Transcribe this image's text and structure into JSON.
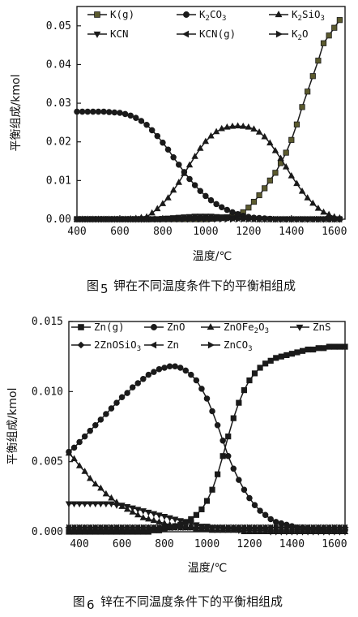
{
  "colors": {
    "ink": "#1a1a1a",
    "k_g_fill": "#5b5a2e",
    "bg": "#ffffff"
  },
  "chart_data": [
    {
      "type": "line",
      "title": "",
      "caption_prefix": "图",
      "caption_number": "5",
      "caption_text": "钾在不同温度条件下的平衡相组成",
      "xlabel": "温度/℃",
      "ylabel": "平衡组成/kmol",
      "xlim": [
        400,
        1650
      ],
      "ylim": [
        0,
        0.055
      ],
      "xticks": [
        "400",
        "600",
        "800",
        "1000",
        "1200",
        "1400",
        "1600"
      ],
      "yticks": [
        "0.00",
        "0.01",
        "0.02",
        "0.03",
        "0.04",
        "0.05"
      ],
      "grid": false,
      "legend": "top",
      "x": [
        400,
        425,
        450,
        475,
        500,
        525,
        550,
        575,
        600,
        625,
        650,
        675,
        700,
        725,
        750,
        775,
        800,
        825,
        850,
        875,
        900,
        925,
        950,
        975,
        1000,
        1025,
        1050,
        1075,
        1100,
        1125,
        1150,
        1175,
        1200,
        1225,
        1250,
        1275,
        1300,
        1325,
        1350,
        1375,
        1400,
        1425,
        1450,
        1475,
        1500,
        1525,
        1550,
        1575,
        1600,
        1625
      ],
      "series": [
        {
          "name": "K(g)",
          "sub": "",
          "marker": "square",
          "values": [
            0,
            0,
            0,
            0,
            0,
            0,
            0,
            0,
            0,
            0,
            0,
            0,
            0,
            0,
            0,
            0,
            0,
            0,
            0,
            0,
            0,
            0,
            0,
            0,
            0,
            0.0001,
            0.0002,
            0.0003,
            0.0005,
            0.0008,
            0.0012,
            0.0018,
            0.003,
            0.0045,
            0.0062,
            0.008,
            0.01,
            0.012,
            0.0145,
            0.0172,
            0.0205,
            0.0245,
            0.029,
            0.033,
            0.037,
            0.041,
            0.0455,
            0.0475,
            0.0495,
            0.0515
          ]
        },
        {
          "name": "K",
          "sub": "2",
          "tail": "CO",
          "sub2": "3",
          "marker": "circle",
          "values": [
            0.0278,
            0.0278,
            0.0278,
            0.0278,
            0.0278,
            0.0278,
            0.0277,
            0.0276,
            0.0275,
            0.0272,
            0.0268,
            0.0262,
            0.0254,
            0.0244,
            0.023,
            0.0215,
            0.0198,
            0.018,
            0.016,
            0.0141,
            0.0122,
            0.0104,
            0.0088,
            0.0073,
            0.006,
            0.0049,
            0.0039,
            0.0031,
            0.0024,
            0.0018,
            0.0013,
            0.0009,
            0.0006,
            0.0004,
            0.0003,
            0.0002,
            0.0001,
            0,
            0,
            0,
            0,
            0,
            0,
            0,
            0,
            0,
            0,
            0,
            0,
            0
          ]
        },
        {
          "name": "K",
          "sub": "2",
          "tail": "SiO",
          "sub2": "3",
          "marker": "triangle-up",
          "values": [
            0,
            0,
            0,
            0,
            0,
            0,
            0,
            0,
            0,
            0,
            0.0001,
            0.0002,
            0.0004,
            0.0006,
            0.0016,
            0.0027,
            0.004,
            0.0055,
            0.0075,
            0.0095,
            0.0118,
            0.014,
            0.0162,
            0.0183,
            0.0201,
            0.0215,
            0.0226,
            0.0234,
            0.0238,
            0.024,
            0.0241,
            0.024,
            0.0238,
            0.0233,
            0.0225,
            0.0213,
            0.0197,
            0.0177,
            0.0157,
            0.0135,
            0.0112,
            0.0092,
            0.0072,
            0.0055,
            0.0041,
            0.0028,
            0.0018,
            0.0012,
            0.0006,
            0.0003
          ]
        },
        {
          "name": "KCN",
          "sub": "",
          "marker": "triangle-down",
          "values": [
            0,
            0,
            0,
            0,
            0,
            0,
            0,
            0,
            0,
            0,
            0,
            0,
            0,
            0,
            0.0001,
            0.0001,
            0.0002,
            0.0003,
            0.0004,
            0.0005,
            0.0006,
            0.0007,
            0.0008,
            0.0008,
            0.0008,
            0.0008,
            0.0007,
            0.0006,
            0.0005,
            0.0004,
            0.0003,
            0.0002,
            0.0001,
            0.0001,
            0,
            0,
            0,
            0,
            0,
            0,
            0,
            0,
            0,
            0,
            0,
            0,
            0,
            0,
            0,
            0
          ]
        },
        {
          "name": "KCN(g)",
          "sub": "",
          "marker": "triangle-left",
          "values": [
            0,
            0,
            0,
            0,
            0,
            0,
            0,
            0,
            0,
            0,
            0,
            0,
            0,
            0,
            0,
            0,
            0.0001,
            0.0001,
            0.0002,
            0.0002,
            0.0003,
            0.0003,
            0.0004,
            0.0004,
            0.0004,
            0.0004,
            0.0004,
            0.0003,
            0.0003,
            0.0002,
            0.0002,
            0.0001,
            0.0001,
            0,
            0,
            0,
            0,
            0,
            0,
            0,
            0,
            0,
            0,
            0,
            0,
            0,
            0,
            0,
            0,
            0
          ]
        },
        {
          "name": "K",
          "sub": "2",
          "tail": "O",
          "sub2": "",
          "marker": "triangle-right",
          "values": [
            0,
            0,
            0,
            0,
            0,
            0,
            0,
            0,
            0,
            0,
            0,
            0,
            0,
            0,
            0,
            0,
            0,
            0,
            0,
            0,
            0,
            0,
            0,
            0,
            0,
            0,
            0,
            0,
            0,
            0,
            0,
            0,
            0,
            0,
            0,
            0,
            0,
            0,
            0,
            0,
            0,
            0,
            0,
            0,
            0,
            0,
            0,
            0,
            0,
            0
          ]
        }
      ]
    },
    {
      "type": "line",
      "title": "",
      "caption_prefix": "图",
      "caption_number": "6",
      "caption_text": "锌在不同温度条件下的平衡相组成",
      "xlabel": "温度/℃",
      "ylabel": "平衡组成/kmol",
      "xlim": [
        350,
        1650
      ],
      "ylim": [
        0,
        0.015
      ],
      "xticks": [
        "400",
        "600",
        "800",
        "1000",
        "1200",
        "1400",
        "1600"
      ],
      "yticks": [
        "0.000",
        "0.005",
        "0.010",
        "0.015"
      ],
      "grid": false,
      "legend": "top",
      "x": [
        350,
        375,
        400,
        425,
        450,
        475,
        500,
        525,
        550,
        575,
        600,
        625,
        650,
        675,
        700,
        725,
        750,
        775,
        800,
        825,
        850,
        875,
        900,
        925,
        950,
        975,
        1000,
        1025,
        1050,
        1075,
        1100,
        1125,
        1150,
        1175,
        1200,
        1225,
        1250,
        1275,
        1300,
        1325,
        1350,
        1375,
        1400,
        1425,
        1450,
        1475,
        1500,
        1525,
        1550,
        1575,
        1600,
        1625,
        1650
      ],
      "series": [
        {
          "name": "Zn(g)",
          "marker": "square",
          "values": [
            0,
            0,
            0,
            0,
            0,
            0,
            0,
            0,
            0,
            0,
            0,
            0,
            0,
            0,
            0,
            0,
            0.0001,
            0.0001,
            0.0002,
            0.0003,
            0.0004,
            0.0005,
            0.0007,
            0.0009,
            0.0012,
            0.0016,
            0.0022,
            0.003,
            0.0041,
            0.0054,
            0.0068,
            0.0081,
            0.0092,
            0.0101,
            0.0108,
            0.0113,
            0.0117,
            0.012,
            0.0122,
            0.0124,
            0.0125,
            0.0126,
            0.0127,
            0.0128,
            0.0129,
            0.013,
            0.013,
            0.0131,
            0.0131,
            0.0132,
            0.0132,
            0.0132,
            0.0132
          ]
        },
        {
          "name": "ZnO",
          "marker": "circle",
          "values": [
            0.0057,
            0.006,
            0.0064,
            0.0068,
            0.0072,
            0.0076,
            0.008,
            0.0084,
            0.0088,
            0.0092,
            0.0096,
            0.0099,
            0.0103,
            0.0106,
            0.0109,
            0.0112,
            0.0114,
            0.0116,
            0.0117,
            0.0118,
            0.0118,
            0.0117,
            0.0115,
            0.0112,
            0.0108,
            0.0102,
            0.0095,
            0.0086,
            0.0076,
            0.0065,
            0.0054,
            0.0045,
            0.0037,
            0.003,
            0.0024,
            0.0019,
            0.0015,
            0.0012,
            0.0009,
            0.0007,
            0.0006,
            0.0005,
            0.0004,
            0.0003,
            0.0003,
            0.0002,
            0.0002,
            0.0002,
            0.0001,
            0.0001,
            0.0001,
            0.0001,
            0.0001
          ]
        },
        {
          "name": "ZnOFe",
          "sub": "2",
          "tail": "O",
          "sub2": "3",
          "marker": "triangle-up",
          "values": [
            0.0056,
            0.0052,
            0.0047,
            0.0043,
            0.0038,
            0.0034,
            0.0031,
            0.0027,
            0.0024,
            0.0021,
            0.0018,
            0.0016,
            0.0014,
            0.0012,
            0.001,
            0.0009,
            0.0008,
            0.0007,
            0.0006,
            0.0005,
            0.0004,
            0.0004,
            0.0003,
            0.0003,
            0.0002,
            0.0002,
            0.0002,
            0.0001,
            0.0001,
            0.0001,
            0.0001,
            0.0001,
            0.0001,
            0,
            0,
            0,
            0,
            0,
            0,
            0,
            0,
            0,
            0,
            0,
            0,
            0,
            0,
            0,
            0,
            0,
            0,
            0,
            0
          ]
        },
        {
          "name": "ZnS",
          "marker": "triangle-down",
          "values": [
            0.002,
            0.002,
            0.002,
            0.002,
            0.002,
            0.002,
            0.002,
            0.002,
            0.002,
            0.0019,
            0.0019,
            0.0018,
            0.0017,
            0.0016,
            0.0015,
            0.0014,
            0.0013,
            0.0012,
            0.0011,
            0.001,
            0.0009,
            0.0008,
            0.0007,
            0.0006,
            0.0005,
            0.0004,
            0.0004,
            0.0003,
            0.0003,
            0.0002,
            0.0002,
            0.0002,
            0.0001,
            0.0001,
            0.0001,
            0.0001,
            0.0001,
            0.0001,
            0,
            0,
            0,
            0,
            0,
            0,
            0,
            0,
            0,
            0,
            0,
            0,
            0,
            0,
            0
          ]
        },
        {
          "name": "2ZnOSiO",
          "sub": "3",
          "marker": "diamond",
          "values": [
            0.0003,
            0.0003,
            0.0003,
            0.0003,
            0.0003,
            0.0003,
            0.0003,
            0.0003,
            0.0003,
            0.0003,
            0.0003,
            0.0003,
            0.0003,
            0.0003,
            0.0003,
            0.0003,
            0.0003,
            0.0003,
            0.0003,
            0.0003,
            0.0003,
            0.0003,
            0.0003,
            0.0003,
            0.0003,
            0.0003,
            0.0003,
            0.0003,
            0.0003,
            0.0003,
            0.0003,
            0.0003,
            0.0003,
            0.0003,
            0.0003,
            0.0003,
            0.0003,
            0.0003,
            0.0003,
            0.0003,
            0.0003,
            0.0003,
            0.0003,
            0.0003,
            0.0003,
            0.0003,
            0.0003,
            0.0003,
            0.0003,
            0.0003,
            0.0003,
            0.0003,
            0.0003
          ]
        },
        {
          "name": "Zn",
          "marker": "triangle-left",
          "values": [
            0.0003,
            0.0003,
            0.0003,
            0.0003,
            0.0003,
            0.0003,
            0.0003,
            0.0003,
            0.0003,
            0.0003,
            0.0003,
            0.0003,
            0.0003,
            0.0003,
            0.0003,
            0.0003,
            0.0003,
            0.0003,
            0.0003,
            0.0003,
            0.0003,
            0.0003,
            0.0003,
            0.0003,
            0.0003,
            0.0003,
            0.0003,
            0.0003,
            0.0003,
            0.0003,
            0.0003,
            0.0003,
            0.0003,
            0.0003,
            0.0003,
            0.0003,
            0.0003,
            0.0003,
            0.0003,
            0.0003,
            0.0003,
            0.0003,
            0.0003,
            0.0003,
            0.0003,
            0.0003,
            0.0003,
            0.0003,
            0.0003,
            0.0003,
            0.0003,
            0.0003,
            0.0003
          ]
        },
        {
          "name": "ZnCO",
          "sub": "3",
          "marker": "triangle-right",
          "values": [
            0.0003,
            0.0003,
            0.0003,
            0.0003,
            0.0003,
            0.0003,
            0.0003,
            0.0003,
            0.0003,
            0.0003,
            0.0003,
            0.0003,
            0.0003,
            0.0003,
            0.0003,
            0.0003,
            0.0003,
            0.0003,
            0.0003,
            0.0003,
            0.0003,
            0.0003,
            0.0003,
            0.0003,
            0.0003,
            0.0003,
            0.0003,
            0.0003,
            0.0003,
            0.0003,
            0.0003,
            0.0003,
            0.0003,
            0.0003,
            0.0003,
            0.0003,
            0.0003,
            0.0003,
            0.0003,
            0.0003,
            0.0003,
            0.0003,
            0.0003,
            0.0003,
            0.0003,
            0.0003,
            0.0003,
            0.0003,
            0.0003,
            0.0003,
            0.0003,
            0.0003,
            0.0003
          ]
        }
      ]
    }
  ]
}
